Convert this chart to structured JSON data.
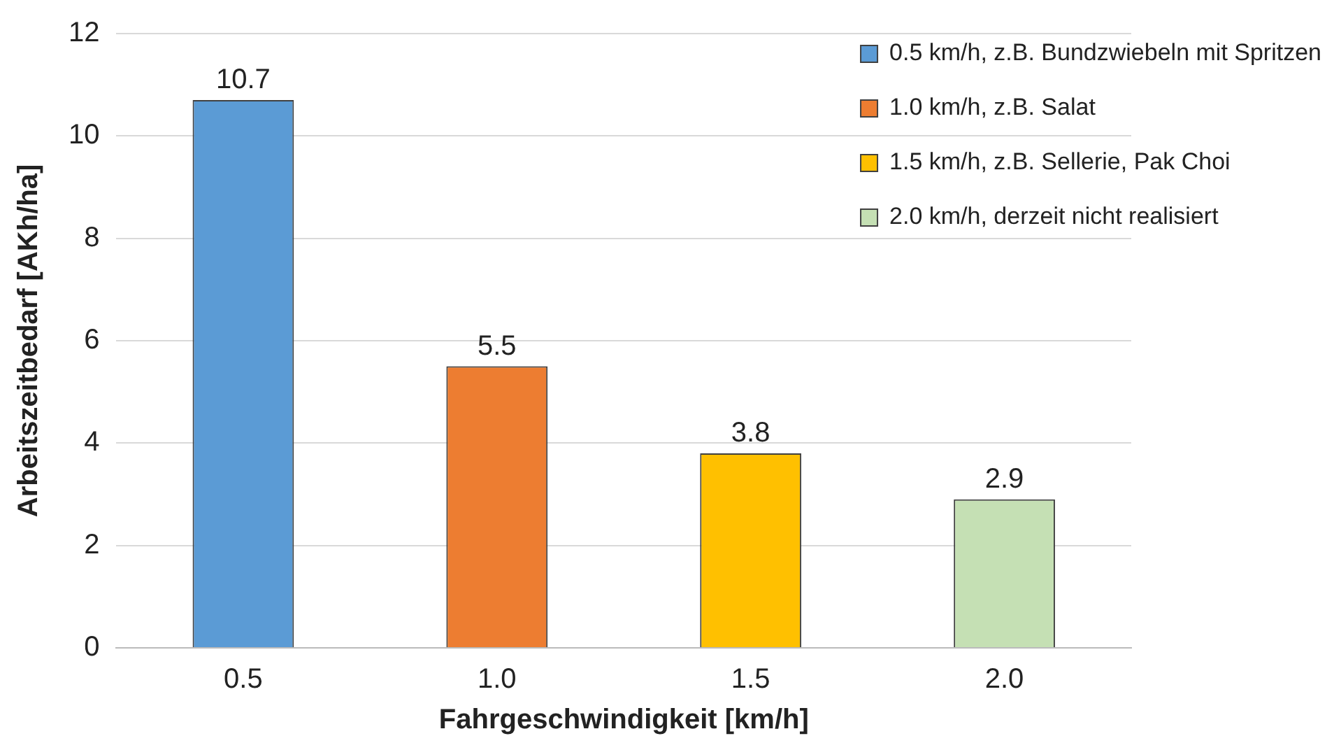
{
  "chart_data": {
    "type": "bar",
    "xlabel": "Fahrgeschwindigkeit [km/h]",
    "ylabel": "Arbeitszeitbedarf [AKh/ha]",
    "categories": [
      "0.5",
      "1.0",
      "1.5",
      "2.0"
    ],
    "series": [
      {
        "name": "0.5 km/h, z.B. Bundzwiebeln mit Spritzen",
        "color": "#5b9bd5",
        "values": [
          10.7,
          null,
          null,
          null
        ]
      },
      {
        "name": "1.0 km/h, z.B. Salat",
        "color": "#ed7d31",
        "values": [
          null,
          5.5,
          null,
          null
        ]
      },
      {
        "name": "1.5 km/h, z.B. Sellerie, Pak Choi",
        "color": "#ffc000",
        "values": [
          null,
          null,
          3.8,
          null
        ]
      },
      {
        "name": "2.0 km/h, derzeit nicht realisiert",
        "color": "#c5e0b4",
        "values": [
          null,
          null,
          null,
          2.9
        ]
      }
    ],
    "ylim": [
      0,
      12
    ],
    "yticks": [
      0,
      2,
      4,
      6,
      8,
      10,
      12
    ],
    "grid": "y",
    "legend": "top right",
    "data_labels": true
  }
}
